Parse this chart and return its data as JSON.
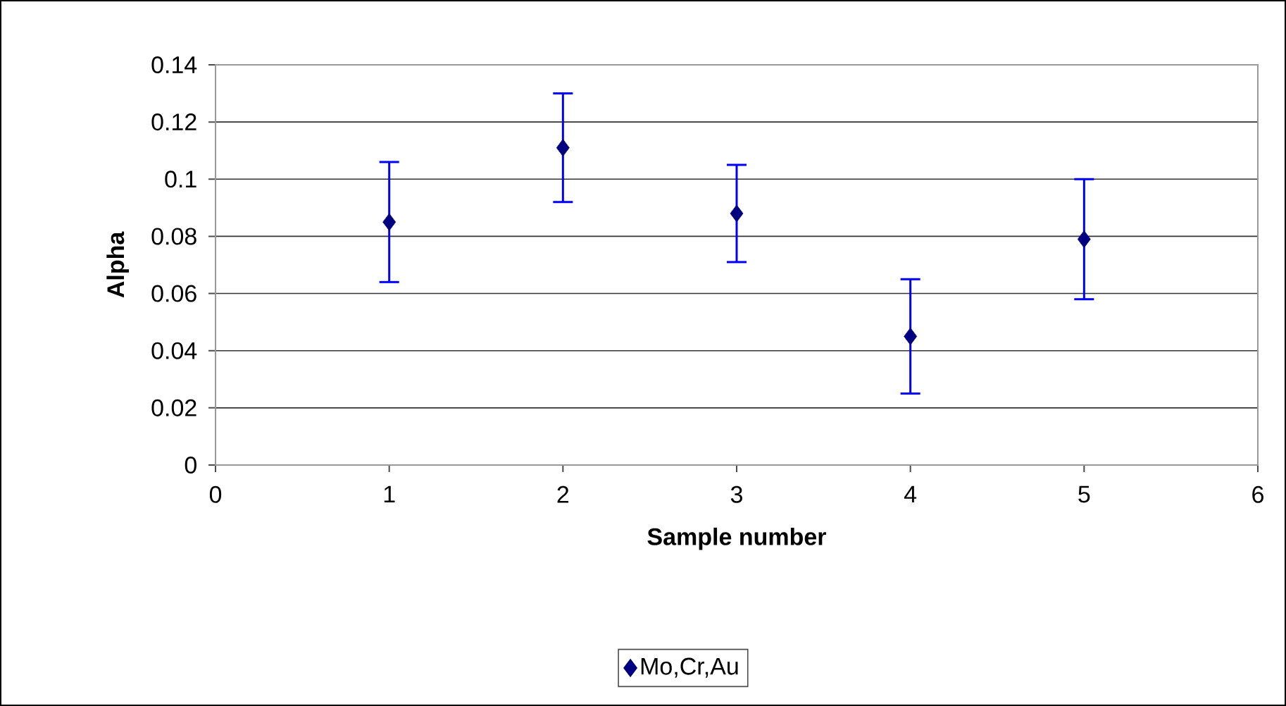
{
  "chart_data": {
    "type": "scatter",
    "xlabel": "Sample number",
    "ylabel": "Alpha",
    "x": [
      1,
      2,
      3,
      4,
      5
    ],
    "series": [
      {
        "name": "Mo,Cr,Au",
        "color": "#000080",
        "values": [
          0.085,
          0.111,
          0.088,
          0.045,
          0.079
        ],
        "errors": [
          0.021,
          0.019,
          0.017,
          0.02,
          0.021
        ]
      }
    ],
    "xlim": [
      0,
      6
    ],
    "xticks": [
      0,
      1,
      2,
      3,
      4,
      5,
      6
    ],
    "ylim": [
      0,
      0.14
    ],
    "yticks": [
      0,
      0.02,
      0.04,
      0.06,
      0.08,
      0.1,
      0.12,
      0.14
    ],
    "grid": "y",
    "legend": "bottom",
    "marker": "diamond"
  }
}
